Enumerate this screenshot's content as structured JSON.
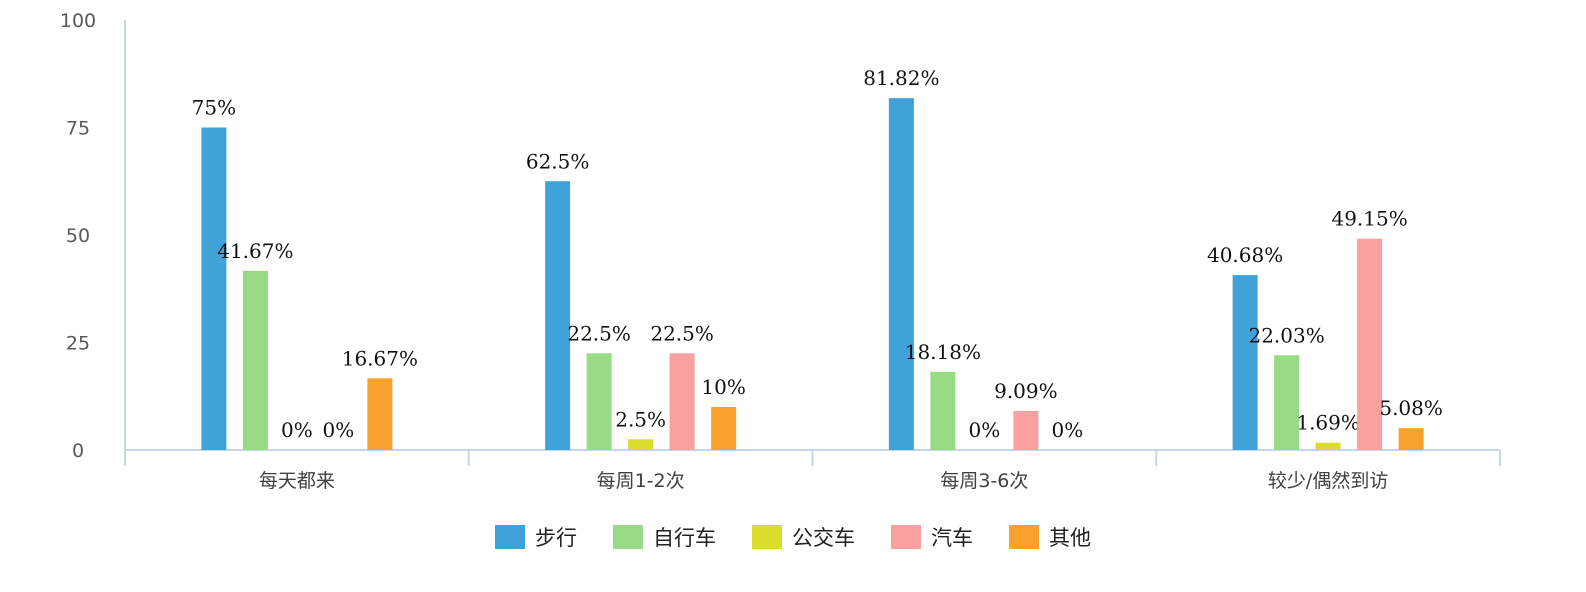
{
  "chart_data": {
    "type": "bar",
    "categories": [
      "每天都来",
      "每周1-2次",
      "每周3-6次",
      "较少/偶然到访"
    ],
    "series": [
      {
        "name": "步行",
        "color": "#3FA3DA",
        "values": [
          75,
          62.5,
          81.82,
          40.68
        ],
        "labels": [
          "75%",
          "62.5%",
          "81.82%",
          "40.68%"
        ]
      },
      {
        "name": "自行车",
        "color": "#99DB84",
        "values": [
          41.67,
          22.5,
          18.18,
          22.03
        ],
        "labels": [
          "41.67%",
          "22.5%",
          "18.18%",
          "22.03%"
        ]
      },
      {
        "name": "公交车",
        "color": "#DADD2E",
        "values": [
          0,
          2.5,
          0,
          1.69
        ],
        "labels": [
          "0%",
          "2.5%",
          "0%",
          "1.69%"
        ]
      },
      {
        "name": "汽车",
        "color": "#FBA0A0",
        "values": [
          0,
          22.5,
          9.09,
          49.15
        ],
        "labels": [
          "0%",
          "22.5%",
          "9.09%",
          "49.15%"
        ]
      },
      {
        "name": "其他",
        "color": "#F9A12F",
        "values": [
          16.67,
          10,
          0,
          5.08
        ],
        "labels": [
          "16.67%",
          "10%",
          "0%",
          "5.08%"
        ]
      }
    ],
    "yticks": [
      0,
      25,
      50,
      75,
      100
    ],
    "ylim": [
      0,
      100
    ],
    "legend_position": "bottom",
    "grid": false
  }
}
